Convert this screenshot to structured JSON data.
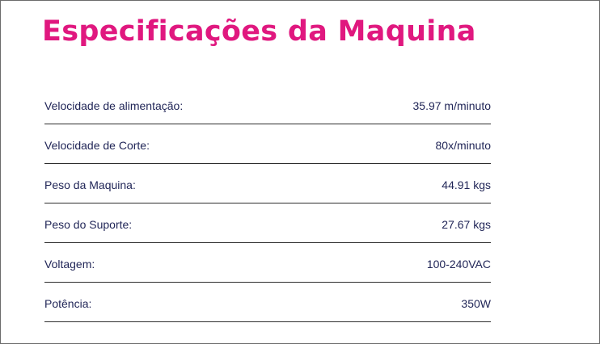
{
  "title": "Especificações da Maquina",
  "accent_color": "#e0187f",
  "text_color": "#1f2456",
  "specs": [
    {
      "label": "Velocidade de alimentação:",
      "value": "35.97 m/minuto"
    },
    {
      "label": "Velocidade de Corte:",
      "value": "80x/minuto"
    },
    {
      "label": "Peso da Maquina:",
      "value": "44.91 kgs"
    },
    {
      "label": "Peso do Suporte:",
      "value": "27.67 kgs"
    },
    {
      "label": "Voltagem:",
      "value": "100-240VAC"
    },
    {
      "label": "Potência:",
      "value": "350W"
    }
  ]
}
